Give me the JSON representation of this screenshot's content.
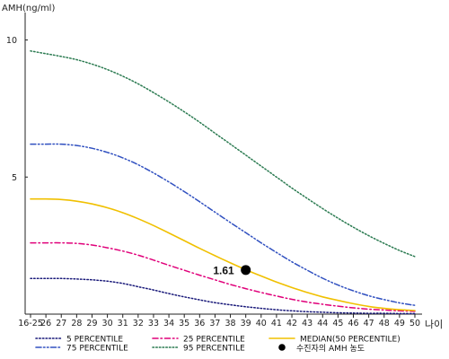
{
  "chart_data": {
    "type": "line",
    "ylabel": "AMH(ng/ml)",
    "xlabel": "나이",
    "x": [
      "16-25",
      "26",
      "27",
      "28",
      "29",
      "30",
      "31",
      "32",
      "33",
      "34",
      "35",
      "36",
      "37",
      "38",
      "39",
      "40",
      "41",
      "42",
      "43",
      "44",
      "45",
      "46",
      "47",
      "48",
      "49",
      "50"
    ],
    "ylim": [
      0,
      11
    ],
    "yticks": [
      5,
      10
    ],
    "grid": false,
    "legend_position": "bottom",
    "series": [
      {
        "name": "5 PERCENTILE",
        "color": "#1a1a7a",
        "dash": "dotted",
        "values": [
          1.3,
          1.3,
          1.3,
          1.28,
          1.25,
          1.2,
          1.12,
          1.0,
          0.88,
          0.75,
          0.63,
          0.52,
          0.42,
          0.34,
          0.27,
          0.21,
          0.16,
          0.12,
          0.09,
          0.07,
          0.05,
          0.04,
          0.03,
          0.03,
          0.02,
          0.02
        ]
      },
      {
        "name": "25 PERCENTILE",
        "color": "#e0007a",
        "dash": "dashdot",
        "values": [
          2.6,
          2.6,
          2.6,
          2.58,
          2.52,
          2.42,
          2.3,
          2.15,
          1.97,
          1.78,
          1.6,
          1.42,
          1.25,
          1.08,
          0.93,
          0.79,
          0.66,
          0.54,
          0.44,
          0.36,
          0.29,
          0.23,
          0.18,
          0.15,
          0.12,
          0.1
        ]
      },
      {
        "name": "MEDIAN(50 PERCENTILE)",
        "color": "#f0c000",
        "dash": "solid",
        "values": [
          4.2,
          4.2,
          4.18,
          4.12,
          4.02,
          3.88,
          3.7,
          3.48,
          3.23,
          2.96,
          2.68,
          2.4,
          2.13,
          1.87,
          1.62,
          1.39,
          1.17,
          0.97,
          0.79,
          0.63,
          0.5,
          0.38,
          0.28,
          0.21,
          0.16,
          0.13
        ]
      },
      {
        "name": "75 PERCENTILE",
        "color": "#3050c0",
        "dash": "dashdotdot",
        "values": [
          6.2,
          6.2,
          6.2,
          6.15,
          6.05,
          5.9,
          5.7,
          5.45,
          5.15,
          4.82,
          4.47,
          4.1,
          3.72,
          3.34,
          2.97,
          2.6,
          2.25,
          1.91,
          1.6,
          1.31,
          1.06,
          0.85,
          0.67,
          0.53,
          0.41,
          0.32
        ]
      },
      {
        "name": "95 PERCENTILE",
        "color": "#2a7a50",
        "dash": "dotted",
        "values": [
          9.6,
          9.5,
          9.4,
          9.28,
          9.12,
          8.92,
          8.68,
          8.4,
          8.08,
          7.74,
          7.38,
          7.0,
          6.6,
          6.2,
          5.8,
          5.4,
          5.0,
          4.6,
          4.22,
          3.85,
          3.5,
          3.17,
          2.86,
          2.58,
          2.32,
          2.1
        ]
      }
    ],
    "marker": {
      "name": "수진자의 AMH 농도",
      "x": "39",
      "y": 1.61,
      "label": "1.61",
      "color": "#000000"
    }
  }
}
